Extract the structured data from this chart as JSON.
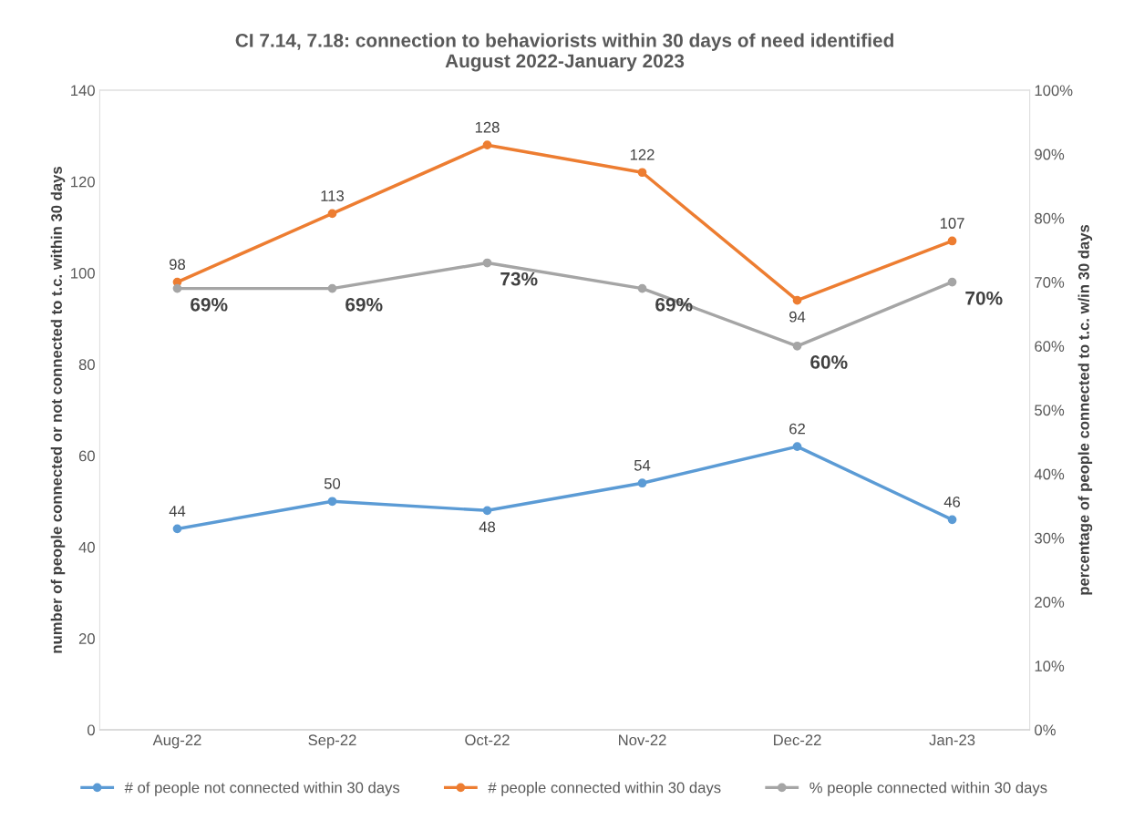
{
  "chart_data": {
    "type": "line",
    "title": "CI 7.14, 7.18: connection to behaviorists within 30 days of need identified\nAugust 2022-January 2023",
    "ylabel": "number of people connected or not connected to t.c. within 30 days",
    "y2label": "percentage of people connected to t.c. w/in 30 days",
    "categories": [
      "Aug-22",
      "Sep-22",
      "Oct-22",
      "Nov-22",
      "Dec-22",
      "Jan-23"
    ],
    "series": [
      {
        "name": "# of people not connected within 30 days",
        "color": "#5b9bd5",
        "values": [
          44,
          50,
          48,
          54,
          62,
          46
        ],
        "value_labels": [
          "44",
          "50",
          "48",
          "54",
          "62",
          "46"
        ]
      },
      {
        "name": "# people connected within 30 days",
        "color": "#ed7d31",
        "values": [
          98,
          113,
          128,
          122,
          94,
          107
        ],
        "value_labels": [
          "98",
          "113",
          "128",
          "122",
          "94",
          "107"
        ]
      },
      {
        "name": "% people connected within 30 days",
        "color": "#a5a5a5",
        "axis": "y2",
        "values": [
          69,
          69,
          73,
          69,
          60,
          70
        ],
        "value_labels": [
          "69%",
          "69%",
          "73%",
          "69%",
          "60%",
          "70%"
        ]
      }
    ],
    "ylim": [
      0,
      140
    ],
    "yticks": [
      0,
      20,
      40,
      60,
      80,
      100,
      120,
      140
    ],
    "y2lim": [
      0,
      100
    ],
    "y2ticks": [
      {
        "value": 0,
        "label": "0%"
      },
      {
        "value": 10,
        "label": "10%"
      },
      {
        "value": 20,
        "label": "20%"
      },
      {
        "value": 30,
        "label": "30%"
      },
      {
        "value": 40,
        "label": "40%"
      },
      {
        "value": 50,
        "label": "50%"
      },
      {
        "value": 60,
        "label": "60%"
      },
      {
        "value": 70,
        "label": "70%"
      },
      {
        "value": 80,
        "label": "80%"
      },
      {
        "value": 90,
        "label": "90%"
      },
      {
        "value": 100,
        "label": "100%"
      }
    ],
    "grid": false,
    "legend": "bottom",
    "marker": "circle",
    "line_style": "solid"
  }
}
